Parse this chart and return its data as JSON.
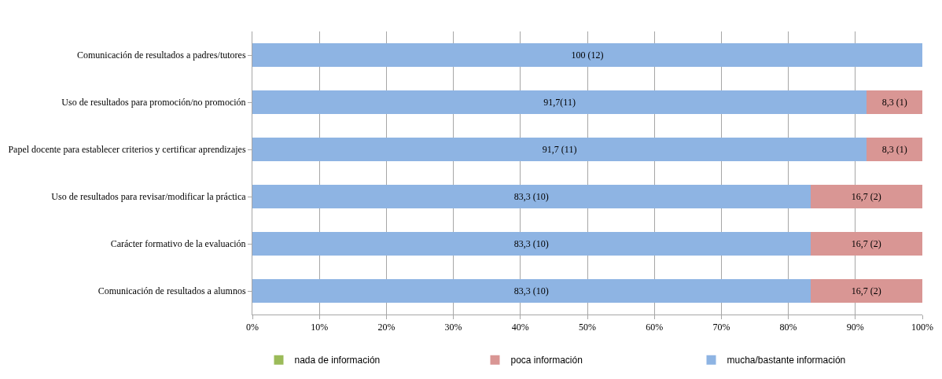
{
  "chart_data": {
    "type": "bar",
    "orientation": "horizontal",
    "stacked": true,
    "categories": [
      "Comunicación de resultados a padres/tutores",
      "Uso de resultados para promoción/no promoción",
      "Papel docente para establecer criterios y certificar aprendizajes",
      "Uso de resultados para revisar/modificar la práctica",
      "Carácter formativo de la evaluación",
      "Comunicación de resultados a alumnos"
    ],
    "series": [
      {
        "name": "mucha/bastante información",
        "color": "#8eb4e3",
        "values": [
          100,
          91.7,
          91.7,
          83.3,
          83.3,
          83.3
        ],
        "value_labels": [
          "100 (12)",
          "91,7(11)",
          "91,7 (11)",
          "83,3 (10)",
          "83,3 (10)",
          "83,3 (10)"
        ]
      },
      {
        "name": "poca información",
        "color": "#d99694",
        "values": [
          0,
          8.3,
          8.3,
          16.7,
          16.7,
          16.7
        ],
        "value_labels": [
          null,
          "8,3 (1)",
          "8,3 (1)",
          "16,7 (2)",
          "16,7 (2)",
          "16,7 (2)"
        ]
      },
      {
        "name": "nada de información",
        "color": "#9bbb59",
        "values": [
          0,
          0,
          0,
          0,
          0,
          0
        ]
      }
    ],
    "xlim": [
      0,
      100
    ],
    "xticks": [
      {
        "value": 0,
        "label": "0%"
      },
      {
        "value": 10,
        "label": "10%"
      },
      {
        "value": 20,
        "label": "20%"
      },
      {
        "value": 30,
        "label": "30%"
      },
      {
        "value": 40,
        "label": "40%"
      },
      {
        "value": 50,
        "label": "50%"
      },
      {
        "value": 60,
        "label": "60%"
      },
      {
        "value": 70,
        "label": "70%"
      },
      {
        "value": 80,
        "label": "80%"
      },
      {
        "value": 90,
        "label": "90%"
      },
      {
        "value": 100,
        "label": "100%"
      }
    ],
    "grid": "x",
    "legend": "bottom"
  }
}
